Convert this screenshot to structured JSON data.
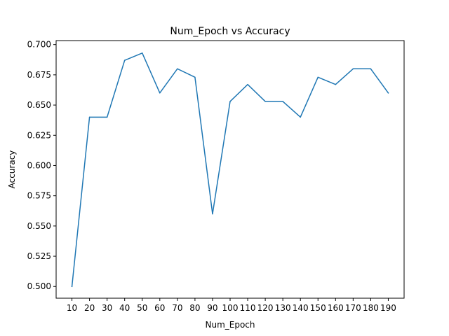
{
  "chart_data": {
    "type": "line",
    "title": "Num_Epoch vs Accuracy",
    "xlabel": "Num_Epoch",
    "ylabel": "Accuracy",
    "x": [
      10,
      20,
      30,
      40,
      50,
      60,
      70,
      80,
      90,
      100,
      110,
      120,
      130,
      140,
      150,
      160,
      170,
      180,
      190
    ],
    "x_tick_labels": [
      "10",
      "20",
      "30",
      "40",
      "50",
      "60",
      "70",
      "80",
      "90",
      "100",
      "110",
      "120",
      "130",
      "140",
      "150",
      "160",
      "170",
      "180",
      "190"
    ],
    "series": [
      {
        "values": [
          0.5,
          0.64,
          0.64,
          0.687,
          0.693,
          0.66,
          0.68,
          0.673,
          0.56,
          0.653,
          0.667,
          0.653,
          0.653,
          0.64,
          0.673,
          0.667,
          0.68,
          0.68,
          0.66
        ],
        "color": "#1f77b4"
      }
    ],
    "y_ticks": [
      0.5,
      0.525,
      0.55,
      0.575,
      0.6,
      0.625,
      0.65,
      0.675,
      0.7
    ],
    "y_tick_labels": [
      "0.500",
      "0.525",
      "0.550",
      "0.575",
      "0.600",
      "0.625",
      "0.650",
      "0.675",
      "0.700"
    ],
    "xlim": [
      1,
      199
    ],
    "ylim": [
      0.4903,
      0.7033
    ],
    "grid": false,
    "legend": "none"
  }
}
